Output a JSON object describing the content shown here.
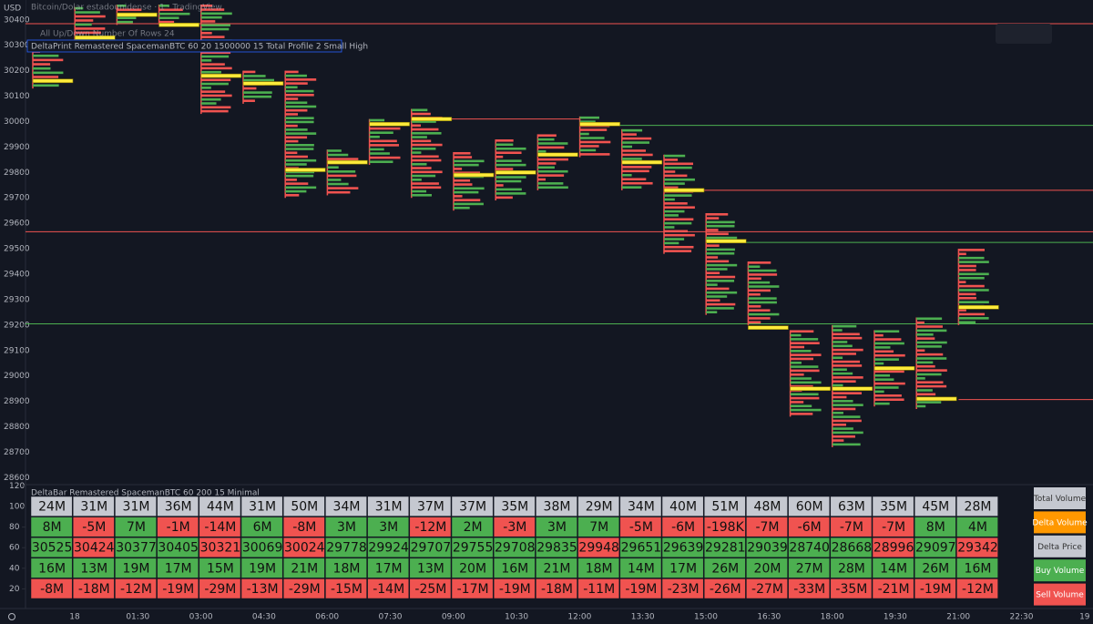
{
  "header": {
    "symbol_line": "Bitcoin/Dolar estadounidense · 1 · TradingView",
    "settings_line": "All Up/Down Number Of Rows 24",
    "indicator_line": "DeltaPrint Remastered SpacemanBTC 60 20 1500000 15 Total Profile 2 Small High",
    "currency": "USD"
  },
  "chart_data": {
    "type": "volume-profile",
    "ylim": [
      28580,
      30460
    ],
    "yticks": [
      28600,
      28700,
      28800,
      28900,
      29000,
      29100,
      29200,
      29300,
      29400,
      29500,
      29600,
      29700,
      29800,
      29900,
      30000,
      30100,
      30200,
      30300,
      30400
    ],
    "xlabels": [
      "18",
      "01:30",
      "03:00",
      "04:30",
      "06:00",
      "07:30",
      "09:00",
      "10:30",
      "12:00",
      "13:30",
      "15:00",
      "16:30",
      "18:00",
      "19:30",
      "21:00",
      "22:30",
      "19"
    ],
    "profiles": [
      {
        "high": 30280,
        "low": 30130,
        "poc": 30160
      },
      {
        "high": 30450,
        "low": 30290,
        "poc": 30330
      },
      {
        "high": 30460,
        "low": 30380,
        "poc": 30420
      },
      {
        "high": 30460,
        "low": 30380,
        "poc": 30380
      },
      {
        "high": 30460,
        "low": 30030,
        "poc": 30180
      },
      {
        "high": 30200,
        "low": 30070,
        "poc": 30150
      },
      {
        "high": 30200,
        "low": 29700,
        "poc": 29810
      },
      {
        "high": 29890,
        "low": 29710,
        "poc": 29840
      },
      {
        "high": 30010,
        "low": 29830,
        "poc": 29990
      },
      {
        "high": 30050,
        "low": 29700,
        "poc": 30010
      },
      {
        "high": 29880,
        "low": 29650,
        "poc": 29790
      },
      {
        "high": 29930,
        "low": 29690,
        "poc": 29800
      },
      {
        "high": 29950,
        "low": 29730,
        "poc": 29870
      },
      {
        "high": 30020,
        "low": 29860,
        "poc": 29990
      },
      {
        "high": 29970,
        "low": 29730,
        "poc": 29840
      },
      {
        "high": 29870,
        "low": 29480,
        "poc": 29730
      },
      {
        "high": 29640,
        "low": 29240,
        "poc": 29530
      },
      {
        "high": 29450,
        "low": 29200,
        "poc": 29190
      },
      {
        "high": 29180,
        "low": 28840,
        "poc": 28950
      },
      {
        "high": 29200,
        "low": 28720,
        "poc": 28950
      },
      {
        "high": 29180,
        "low": 28880,
        "poc": 29030
      },
      {
        "high": 29230,
        "low": 28870,
        "poc": 28910
      },
      {
        "high": 29500,
        "low": 29200,
        "poc": 29270
      }
    ],
    "levels": [
      {
        "price": 30385,
        "color": "#f05350",
        "from": 0
      },
      {
        "price": 30010,
        "color": "#f05350",
        "from": 9,
        "to": 13
      },
      {
        "price": 29985,
        "color": "#4caf50",
        "from": 13
      },
      {
        "price": 29730,
        "color": "#f05350",
        "from": 15
      },
      {
        "price": 29567,
        "color": "#f05350",
        "from": 0
      },
      {
        "price": 29525,
        "color": "#4caf50",
        "from": 16
      },
      {
        "price": 29205,
        "color": "#4caf50",
        "from": 0
      },
      {
        "price": 28907,
        "color": "#f05350",
        "from": 22
      }
    ],
    "delta_bar": {
      "title": "DeltaBar Remastered SpacemanBTC 60 200 15 Minimal",
      "ylim": [
        8,
        123
      ],
      "yticks": [
        20,
        40,
        60,
        80,
        100,
        120
      ],
      "rows": [
        {
          "name": "Total Volume",
          "color": "#c5c8d0",
          "cells": [
            "24M",
            "31M",
            "31M",
            "36M",
            "44M",
            "31M",
            "50M",
            "34M",
            "31M",
            "37M",
            "37M",
            "35M",
            "38M",
            "29M",
            "34M",
            "40M",
            "51M",
            "48M",
            "60M",
            "63M",
            "35M",
            "45M",
            "28M"
          ]
        },
        {
          "name": "Delta Volume",
          "color": "#ff9800",
          "cells": [
            "8M",
            "-5M",
            "7M",
            "-1M",
            "-14M",
            "6M",
            "-8M",
            "3M",
            "3M",
            "-12M",
            "2M",
            "-3M",
            "3M",
            "7M",
            "-5M",
            "-6M",
            "-198K",
            "-7M",
            "-6M",
            "-7M",
            "-7M",
            "8M",
            "4M"
          ],
          "cell_colors": [
            "#4caf50",
            "#f05350",
            "#4caf50",
            "#f05350",
            "#f05350",
            "#4caf50",
            "#f05350",
            "#4caf50",
            "#4caf50",
            "#f05350",
            "#4caf50",
            "#f05350",
            "#4caf50",
            "#4caf50",
            "#f05350",
            "#f05350",
            "#f05350",
            "#f05350",
            "#f05350",
            "#f05350",
            "#f05350",
            "#4caf50",
            "#4caf50"
          ]
        },
        {
          "name": "Delta Price",
          "color": "#c5c8d0",
          "cells": [
            "30525",
            "30424",
            "30377",
            "30405",
            "30321",
            "30069",
            "30024",
            "29778",
            "29924",
            "29707",
            "29755",
            "29708",
            "29835",
            "29948",
            "29651",
            "29639",
            "29281",
            "29039",
            "28740",
            "28668",
            "28996",
            "29097",
            "29342"
          ],
          "cell_colors": [
            "#4caf50",
            "#f05350",
            "#4caf50",
            "#4caf50",
            "#f05350",
            "#4caf50",
            "#f05350",
            "#4caf50",
            "#4caf50",
            "#4caf50",
            "#4caf50",
            "#4caf50",
            "#4caf50",
            "#f05350",
            "#4caf50",
            "#4caf50",
            "#4caf50",
            "#4caf50",
            "#4caf50",
            "#4caf50",
            "#f05350",
            "#4caf50",
            "#f05350"
          ]
        },
        {
          "name": "Buy Volume",
          "color": "#4caf50",
          "cells": [
            "16M",
            "13M",
            "19M",
            "17M",
            "15M",
            "19M",
            "21M",
            "18M",
            "17M",
            "13M",
            "20M",
            "16M",
            "21M",
            "18M",
            "14M",
            "17M",
            "26M",
            "20M",
            "27M",
            "28M",
            "14M",
            "26M",
            "16M"
          ]
        },
        {
          "name": "Sell Volume",
          "color": "#f05350",
          "cells": [
            "-8M",
            "-18M",
            "-12M",
            "-19M",
            "-29M",
            "-13M",
            "-29M",
            "-15M",
            "-14M",
            "-25M",
            "-17M",
            "-19M",
            "-18M",
            "-11M",
            "-19M",
            "-23M",
            "-26M",
            "-27M",
            "-33M",
            "-35M",
            "-21M",
            "-19M",
            "-12M"
          ]
        }
      ]
    }
  }
}
